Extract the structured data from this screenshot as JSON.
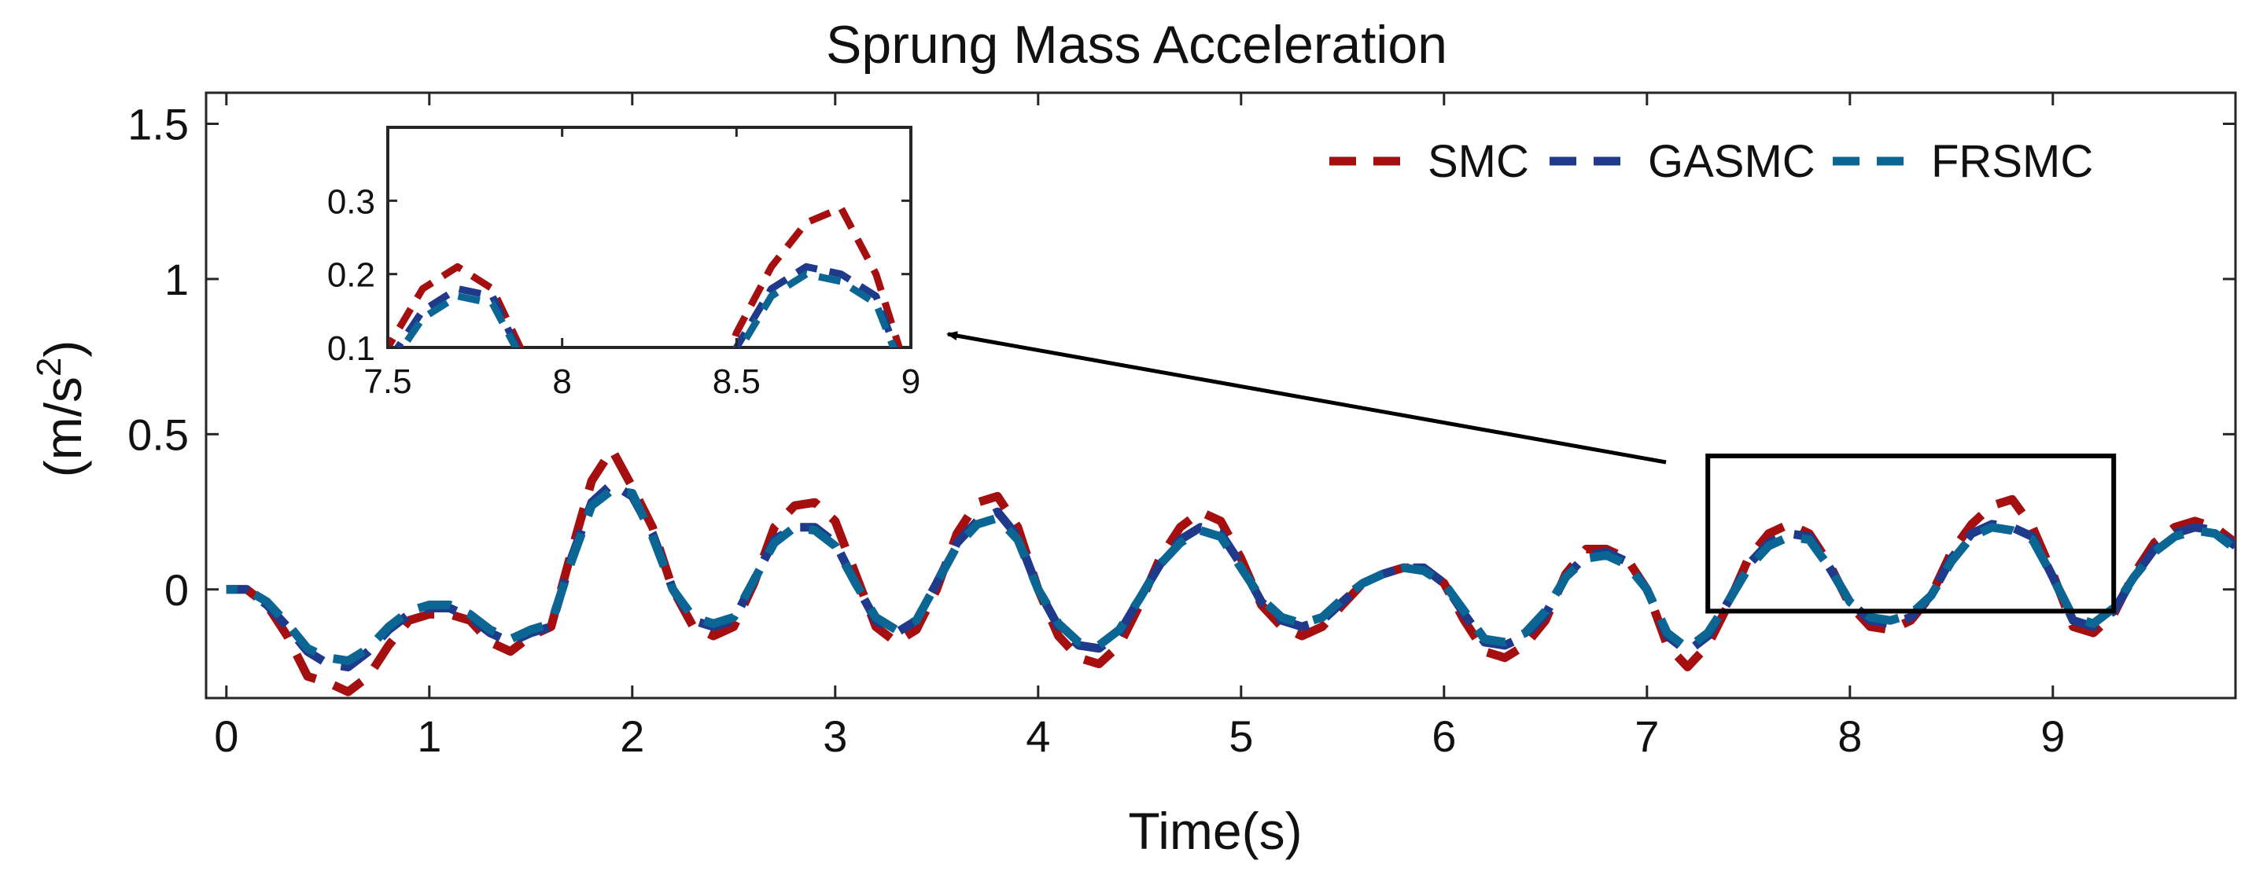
{
  "chart_data": {
    "type": "line",
    "title": "Sprung Mass Acceleration",
    "xlabel": "Time(s)",
    "ylabel_base": "(m/s",
    "ylabel_exp": "2",
    "ylabel_close": ")",
    "xlim": [
      -0.1,
      9.9
    ],
    "ylim": [
      -0.35,
      1.6
    ],
    "xticks": [
      0,
      1,
      2,
      3,
      4,
      5,
      6,
      7,
      8,
      9
    ],
    "xtick_labels": [
      "0",
      "1",
      "2",
      "3",
      "4",
      "5",
      "6",
      "7",
      "8",
      "9"
    ],
    "yticks": [
      0,
      0.5,
      1,
      1.5
    ],
    "ytick_labels": [
      "0",
      "0.5",
      "1",
      "1.5"
    ],
    "legend_position": "top-right",
    "series": [
      {
        "name": "SMC",
        "color": "#a50f0f",
        "x": [
          0.0,
          0.1,
          0.2,
          0.3,
          0.4,
          0.5,
          0.6,
          0.7,
          0.8,
          0.9,
          1.0,
          1.1,
          1.2,
          1.3,
          1.4,
          1.5,
          1.6,
          1.7,
          1.8,
          1.9,
          2.0,
          2.1,
          2.2,
          2.3,
          2.4,
          2.5,
          2.6,
          2.7,
          2.8,
          2.9,
          3.0,
          3.1,
          3.2,
          3.3,
          3.4,
          3.5,
          3.6,
          3.7,
          3.8,
          3.9,
          4.0,
          4.1,
          4.2,
          4.3,
          4.4,
          4.5,
          4.6,
          4.7,
          4.8,
          4.9,
          5.0,
          5.1,
          5.2,
          5.3,
          5.4,
          5.5,
          5.6,
          5.7,
          5.8,
          5.9,
          6.0,
          6.1,
          6.2,
          6.3,
          6.4,
          6.5,
          6.6,
          6.7,
          6.8,
          6.9,
          7.0,
          7.1,
          7.2,
          7.3,
          7.4,
          7.5,
          7.6,
          7.7,
          7.8,
          7.9,
          8.0,
          8.1,
          8.2,
          8.3,
          8.4,
          8.5,
          8.6,
          8.7,
          8.8,
          8.9,
          9.0,
          9.1,
          9.2,
          9.3,
          9.4,
          9.5,
          9.6,
          9.7,
          9.8,
          9.9
        ],
        "values": [
          0.0,
          0.0,
          -0.05,
          -0.15,
          -0.28,
          -0.3,
          -0.33,
          -0.28,
          -0.18,
          -0.1,
          -0.08,
          -0.08,
          -0.1,
          -0.17,
          -0.2,
          -0.15,
          -0.12,
          0.12,
          0.35,
          0.45,
          0.33,
          0.2,
          0.0,
          -0.12,
          -0.15,
          -0.12,
          0.02,
          0.2,
          0.27,
          0.28,
          0.22,
          0.05,
          -0.12,
          -0.17,
          -0.13,
          0.0,
          0.18,
          0.28,
          0.3,
          0.2,
          0.0,
          -0.15,
          -0.22,
          -0.24,
          -0.18,
          -0.05,
          0.1,
          0.2,
          0.25,
          0.22,
          0.1,
          -0.05,
          -0.12,
          -0.15,
          -0.12,
          -0.05,
          0.02,
          0.05,
          0.07,
          0.07,
          0.02,
          -0.1,
          -0.2,
          -0.22,
          -0.18,
          -0.1,
          0.05,
          0.13,
          0.13,
          0.1,
          0.0,
          -0.18,
          -0.25,
          -0.18,
          -0.05,
          0.1,
          0.18,
          0.21,
          0.18,
          0.08,
          -0.05,
          -0.12,
          -0.13,
          -0.1,
          -0.02,
          0.12,
          0.21,
          0.27,
          0.29,
          0.2,
          0.05,
          -0.12,
          -0.14,
          -0.08,
          0.05,
          0.15,
          0.2,
          0.22,
          0.2,
          0.15
        ]
      },
      {
        "name": "GASMC",
        "color": "#1f3a8a",
        "x": [
          0.0,
          0.1,
          0.2,
          0.3,
          0.4,
          0.5,
          0.6,
          0.7,
          0.8,
          0.9,
          1.0,
          1.1,
          1.2,
          1.3,
          1.4,
          1.5,
          1.6,
          1.7,
          1.8,
          1.9,
          2.0,
          2.1,
          2.2,
          2.3,
          2.4,
          2.5,
          2.6,
          2.7,
          2.8,
          2.9,
          3.0,
          3.1,
          3.2,
          3.3,
          3.4,
          3.5,
          3.6,
          3.7,
          3.8,
          3.9,
          4.0,
          4.1,
          4.2,
          4.3,
          4.4,
          4.5,
          4.6,
          4.7,
          4.8,
          4.9,
          5.0,
          5.1,
          5.2,
          5.3,
          5.4,
          5.5,
          5.6,
          5.7,
          5.8,
          5.9,
          6.0,
          6.1,
          6.2,
          6.3,
          6.4,
          6.5,
          6.6,
          6.7,
          6.8,
          6.9,
          7.0,
          7.1,
          7.2,
          7.3,
          7.4,
          7.5,
          7.6,
          7.7,
          7.8,
          7.9,
          8.0,
          8.1,
          8.2,
          8.3,
          8.4,
          8.5,
          8.6,
          8.7,
          8.8,
          8.9,
          9.0,
          9.1,
          9.2,
          9.3,
          9.4,
          9.5,
          9.6,
          9.7,
          9.8,
          9.9
        ],
        "values": [
          0.0,
          0.0,
          -0.05,
          -0.12,
          -0.2,
          -0.24,
          -0.25,
          -0.2,
          -0.13,
          -0.08,
          -0.06,
          -0.06,
          -0.09,
          -0.14,
          -0.17,
          -0.14,
          -0.12,
          0.1,
          0.28,
          0.34,
          0.3,
          0.18,
          0.0,
          -0.1,
          -0.12,
          -0.1,
          0.03,
          0.16,
          0.2,
          0.2,
          0.15,
          0.02,
          -0.1,
          -0.14,
          -0.1,
          0.02,
          0.15,
          0.22,
          0.25,
          0.17,
          0.0,
          -0.12,
          -0.18,
          -0.19,
          -0.14,
          -0.03,
          0.08,
          0.16,
          0.2,
          0.18,
          0.08,
          -0.04,
          -0.1,
          -0.12,
          -0.1,
          -0.04,
          0.02,
          0.05,
          0.07,
          0.07,
          0.02,
          -0.08,
          -0.17,
          -0.18,
          -0.15,
          -0.08,
          0.04,
          0.11,
          0.12,
          0.09,
          0.0,
          -0.15,
          -0.2,
          -0.15,
          -0.04,
          0.08,
          0.15,
          0.18,
          0.17,
          0.07,
          -0.04,
          -0.1,
          -0.11,
          -0.09,
          -0.02,
          0.1,
          0.18,
          0.21,
          0.2,
          0.17,
          0.04,
          -0.1,
          -0.12,
          -0.07,
          0.04,
          0.13,
          0.18,
          0.2,
          0.19,
          0.14
        ]
      },
      {
        "name": "FRSMC",
        "color": "#0b6694",
        "x": [
          0.0,
          0.1,
          0.2,
          0.3,
          0.4,
          0.5,
          0.6,
          0.7,
          0.8,
          0.9,
          1.0,
          1.1,
          1.2,
          1.3,
          1.4,
          1.5,
          1.6,
          1.7,
          1.8,
          1.9,
          2.0,
          2.1,
          2.2,
          2.3,
          2.4,
          2.5,
          2.6,
          2.7,
          2.8,
          2.9,
          3.0,
          3.1,
          3.2,
          3.3,
          3.4,
          3.5,
          3.6,
          3.7,
          3.8,
          3.9,
          4.0,
          4.1,
          4.2,
          4.3,
          4.4,
          4.5,
          4.6,
          4.7,
          4.8,
          4.9,
          5.0,
          5.1,
          5.2,
          5.3,
          5.4,
          5.5,
          5.6,
          5.7,
          5.8,
          5.9,
          6.0,
          6.1,
          6.2,
          6.3,
          6.4,
          6.5,
          6.6,
          6.7,
          6.8,
          6.9,
          7.0,
          7.1,
          7.2,
          7.3,
          7.4,
          7.5,
          7.6,
          7.7,
          7.8,
          7.9,
          8.0,
          8.1,
          8.2,
          8.3,
          8.4,
          8.5,
          8.6,
          8.7,
          8.8,
          8.9,
          9.0,
          9.1,
          9.2,
          9.3,
          9.4,
          9.5,
          9.6,
          9.7,
          9.8,
          9.9
        ],
        "values": [
          0.0,
          0.0,
          -0.04,
          -0.11,
          -0.19,
          -0.22,
          -0.23,
          -0.19,
          -0.12,
          -0.07,
          -0.05,
          -0.05,
          -0.08,
          -0.13,
          -0.16,
          -0.13,
          -0.11,
          0.09,
          0.27,
          0.32,
          0.31,
          0.17,
          0.0,
          -0.09,
          -0.11,
          -0.09,
          0.03,
          0.15,
          0.2,
          0.19,
          0.14,
          0.02,
          -0.09,
          -0.13,
          -0.1,
          0.02,
          0.14,
          0.21,
          0.23,
          0.16,
          0.0,
          -0.11,
          -0.17,
          -0.18,
          -0.13,
          -0.03,
          0.08,
          0.15,
          0.19,
          0.17,
          0.07,
          -0.03,
          -0.09,
          -0.11,
          -0.09,
          -0.03,
          0.02,
          0.05,
          0.07,
          0.06,
          0.02,
          -0.07,
          -0.16,
          -0.17,
          -0.14,
          -0.07,
          0.04,
          0.1,
          0.11,
          0.08,
          0.0,
          -0.14,
          -0.19,
          -0.14,
          -0.04,
          0.07,
          0.14,
          0.17,
          0.16,
          0.07,
          -0.04,
          -0.09,
          -0.1,
          -0.08,
          -0.02,
          0.09,
          0.17,
          0.2,
          0.19,
          0.16,
          0.04,
          -0.09,
          -0.11,
          -0.06,
          0.04,
          0.12,
          0.17,
          0.19,
          0.18,
          0.13
        ]
      }
    ],
    "zoom_region": {
      "x": [
        7.3,
        9.3
      ],
      "y": [
        -0.07,
        0.43
      ]
    },
    "inset": {
      "xlim": [
        7.5,
        9.0
      ],
      "ylim": [
        0.1,
        0.4
      ],
      "xticks": [
        7.5,
        8,
        8.5,
        9
      ],
      "xtick_labels": [
        "7.5",
        "8",
        "8.5",
        "9"
      ],
      "yticks": [
        0.1,
        0.2,
        0.3
      ],
      "ytick_labels": [
        "0.1",
        "0.2",
        "0.3"
      ]
    }
  }
}
